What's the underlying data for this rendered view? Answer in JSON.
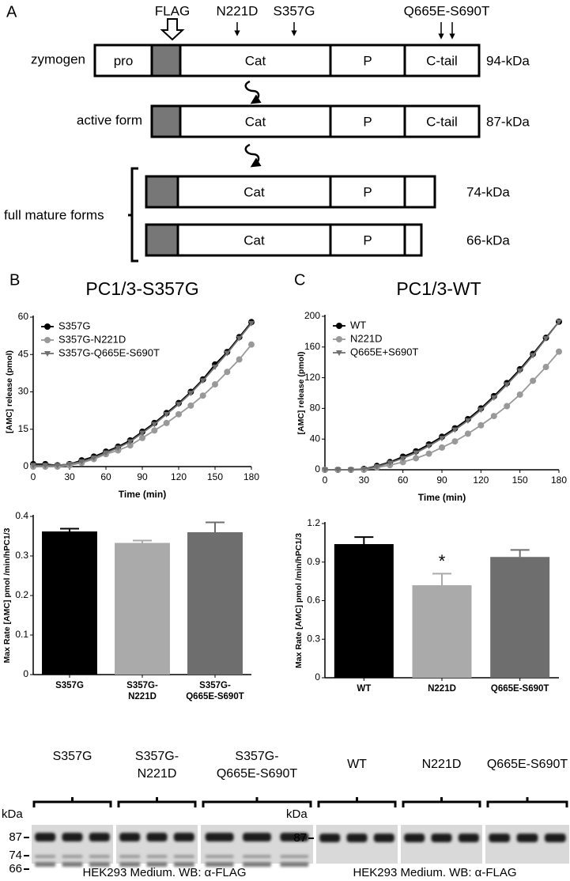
{
  "panel_a": {
    "label": "A",
    "mutations": [
      "FLAG",
      "N221D",
      "S357G",
      "Q665E-S690T"
    ],
    "forms": [
      {
        "name": "zymogen",
        "domains": [
          "pro",
          "Cat",
          "P",
          "C-tail"
        ],
        "size": "94-kDa"
      },
      {
        "name": "active form",
        "domains": [
          "Cat",
          "P",
          "C-tail"
        ],
        "size": "87-kDa"
      }
    ],
    "mature_label": "full mature forms",
    "mature": [
      {
        "domains": [
          "Cat",
          "P"
        ],
        "size": "74-kDa"
      },
      {
        "domains": [
          "Cat",
          "P"
        ],
        "size": "66-kDa"
      }
    ]
  },
  "chart_data": [
    {
      "type": "line",
      "panel": "B",
      "title": "PC1/3-S357G",
      "x_label": "Time (min)",
      "y_label": "[AMC] release (pmol)",
      "x": [
        0,
        10,
        20,
        30,
        40,
        50,
        60,
        70,
        80,
        90,
        100,
        110,
        120,
        130,
        140,
        150,
        160,
        170,
        180
      ],
      "xlim": [
        0,
        180
      ],
      "xticks": [
        0,
        30,
        60,
        90,
        120,
        150,
        180
      ],
      "ylim": [
        0,
        60
      ],
      "yticks": [
        0,
        15,
        30,
        45,
        60
      ],
      "legend": "top-left",
      "series": [
        {
          "name": "S357G",
          "color": "#000000",
          "marker": "circle",
          "values": [
            1,
            1,
            0.5,
            1,
            2.5,
            4,
            6,
            8,
            10.5,
            14,
            17.5,
            21.5,
            25.5,
            30,
            35,
            41,
            46,
            52,
            58
          ]
        },
        {
          "name": "S357G-N221D",
          "color": "#999999",
          "marker": "circle",
          "values": [
            0,
            0,
            0,
            0.5,
            1.5,
            3,
            5,
            6.5,
            8.5,
            11.5,
            14.5,
            17.5,
            21,
            24.5,
            28.5,
            33,
            38,
            43,
            49
          ]
        },
        {
          "name": "S357G-Q665E-S690T",
          "color": "#707070",
          "marker": "triangle-down",
          "values": [
            0.5,
            0.5,
            0.5,
            1,
            2,
            3.5,
            5.5,
            7.5,
            10,
            13.5,
            17,
            21,
            25,
            29.5,
            34.5,
            40,
            45.5,
            51.5,
            57.5
          ]
        }
      ]
    },
    {
      "type": "line",
      "panel": "C",
      "title": "PC1/3-WT",
      "x_label": "Time (min)",
      "y_label": "[AMC] release (pmol)",
      "x": [
        0,
        10,
        20,
        30,
        40,
        50,
        60,
        70,
        80,
        90,
        100,
        110,
        120,
        130,
        140,
        150,
        160,
        170,
        180
      ],
      "xlim": [
        0,
        180
      ],
      "xticks": [
        0,
        30,
        60,
        90,
        120,
        150,
        180
      ],
      "ylim": [
        0,
        200
      ],
      "yticks": [
        0,
        40,
        80,
        120,
        160,
        200
      ],
      "legend": "top-left",
      "series": [
        {
          "name": "WT",
          "color": "#000000",
          "marker": "circle",
          "values": [
            0,
            0,
            0,
            1,
            5,
            10,
            17,
            24,
            33,
            43,
            54,
            66,
            80,
            96,
            113,
            131,
            151,
            172,
            193
          ]
        },
        {
          "name": "N221D",
          "color": "#999999",
          "marker": "circle",
          "values": [
            0,
            0,
            0,
            0,
            3,
            6,
            10,
            15,
            21,
            29,
            37,
            47,
            58,
            70,
            83,
            98,
            116,
            134,
            154
          ]
        },
        {
          "name": "Q665E+S690T",
          "color": "#707070",
          "marker": "triangle-down",
          "values": [
            0,
            0,
            0,
            1,
            4,
            9,
            15,
            22,
            31,
            41,
            52,
            64,
            78,
            94,
            111,
            129,
            149,
            171,
            193
          ]
        }
      ]
    },
    {
      "type": "bar",
      "y_label": "Max Rate [AMC] pmol /min/hPC1/3",
      "categories": [
        [
          "S357G"
        ],
        [
          "S357G-",
          "N221D"
        ],
        [
          "S357G-",
          "Q665E-S690T"
        ]
      ],
      "values": [
        0.362,
        0.333,
        0.36
      ],
      "errors": [
        0.007,
        0.006,
        0.025
      ],
      "colors": [
        "#000000",
        "#aaaaaa",
        "#6e6e6e"
      ],
      "ylim": [
        0,
        0.4
      ],
      "yticks": [
        0,
        0.1,
        0.2,
        0.3,
        0.4
      ]
    },
    {
      "type": "bar",
      "y_label": "Max Rate [AMC] pmol /min/hPC1/3",
      "categories": [
        [
          "WT"
        ],
        [
          "N221D"
        ],
        [
          "Q665E-S690T"
        ]
      ],
      "values": [
        1.04,
        0.72,
        0.94
      ],
      "errors": [
        0.055,
        0.09,
        0.055
      ],
      "colors": [
        "#000000",
        "#aaaaaa",
        "#6e6e6e"
      ],
      "ylim": [
        0,
        1.2
      ],
      "yticks": [
        0,
        {
          "value": 0.3,
          "label": "0.3"
        },
        {
          "value": 0.6,
          "label": "0.6"
        },
        {
          "value": 0.9,
          "label": "0.9"
        },
        {
          "value": 1.2,
          "label": "1.2"
        }
      ],
      "annotations": [
        {
          "text": "*",
          "category": 1
        }
      ]
    }
  ],
  "blots": [
    {
      "lanes": [
        [
          "S357G"
        ],
        [
          "S357G-",
          "N221D"
        ],
        [
          "S357G-",
          "Q665E-S690T"
        ]
      ],
      "unit": "kDa",
      "markers": [
        "87",
        "74",
        "66"
      ],
      "caption": "HEK293 Medium. WB: α-FLAG"
    },
    {
      "lanes": [
        [
          "WT"
        ],
        [
          "N221D"
        ],
        [
          "Q665E-S690T"
        ]
      ],
      "unit": "kDa",
      "markers": [
        "87"
      ],
      "caption": "HEK293 Medium. WB: α-FLAG"
    }
  ]
}
